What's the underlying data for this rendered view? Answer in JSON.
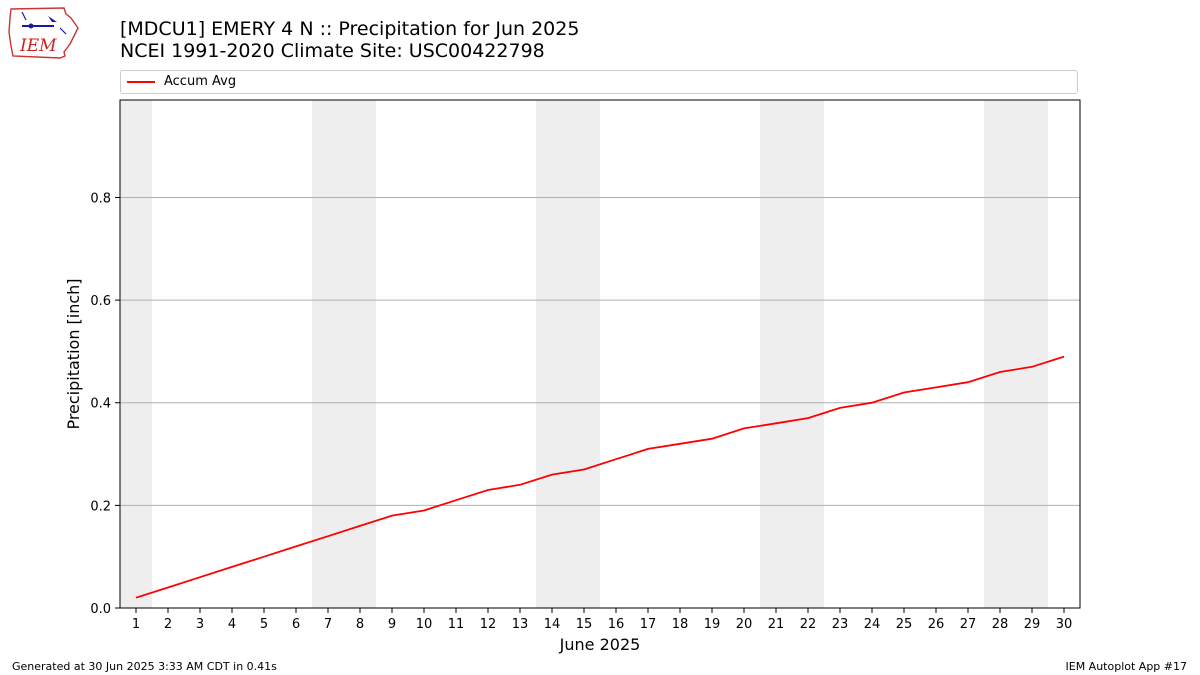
{
  "header": {
    "title_line1": "[MDCU1] EMERY 4 N :: Precipitation for Jun 2025",
    "title_line2": "NCEI 1991-2020 Climate Site: USC00422798",
    "logo_text": "IEM"
  },
  "footer": {
    "generated": "Generated at 30 Jun 2025 3:33 AM CDT in 0.41s",
    "app": "IEM Autoplot App #17"
  },
  "colors": {
    "series": "#ff0000",
    "weekend_band": "#eeeeee",
    "grid": "#b0b0b0"
  },
  "chart_data": {
    "type": "line",
    "title": "[MDCU1] EMERY 4 N :: Precipitation for Jun 2025",
    "subtitle": "NCEI 1991-2020 Climate Site: USC00422798",
    "xlabel": "June 2025",
    "ylabel": "Precipitation [inch]",
    "xlim": [
      0.5,
      30.5
    ],
    "ylim": [
      0,
      0.99
    ],
    "yticks": [
      0.0,
      0.2,
      0.4,
      0.6,
      0.8
    ],
    "ytick_labels": [
      "0.0",
      "0.2",
      "0.4",
      "0.6",
      "0.8"
    ],
    "x": [
      1,
      2,
      3,
      4,
      5,
      6,
      7,
      8,
      9,
      10,
      11,
      12,
      13,
      14,
      15,
      16,
      17,
      18,
      19,
      20,
      21,
      22,
      23,
      24,
      25,
      26,
      27,
      28,
      29,
      30
    ],
    "xtick_labels": [
      "1",
      "2",
      "3",
      "4",
      "5",
      "6",
      "7",
      "8",
      "9",
      "10",
      "11",
      "12",
      "13",
      "14",
      "15",
      "16",
      "17",
      "18",
      "19",
      "20",
      "21",
      "22",
      "23",
      "24",
      "25",
      "26",
      "27",
      "28",
      "29",
      "30"
    ],
    "weekend_bands": [
      [
        0.5,
        1.5
      ],
      [
        6.5,
        8.5
      ],
      [
        13.5,
        15.5
      ],
      [
        20.5,
        22.5
      ],
      [
        27.5,
        29.5
      ]
    ],
    "grid": "horizontal",
    "legend_position": "top",
    "series": [
      {
        "name": "Accum Avg",
        "color": "#ff0000",
        "values": [
          0.02,
          0.04,
          0.06,
          0.08,
          0.1,
          0.12,
          0.14,
          0.16,
          0.18,
          0.19,
          0.21,
          0.23,
          0.24,
          0.26,
          0.27,
          0.29,
          0.31,
          0.32,
          0.33,
          0.35,
          0.36,
          0.37,
          0.39,
          0.4,
          0.42,
          0.43,
          0.44,
          0.46,
          0.47,
          0.49
        ]
      }
    ]
  }
}
